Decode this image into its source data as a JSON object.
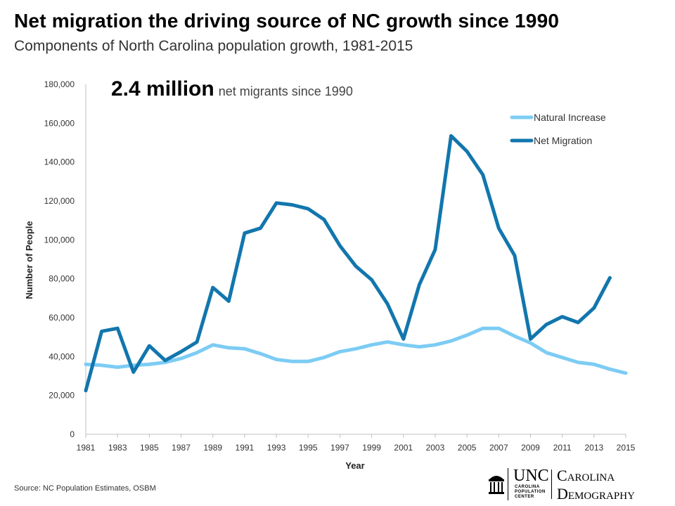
{
  "header": {
    "title": "Net migration the driving source of NC growth since 1990",
    "subtitle": "Components of North Carolina population growth, 1981-2015"
  },
  "callout": {
    "value": "2.4 million",
    "text": "net migrants since 1990"
  },
  "source": "Source: NC Population Estimates, OSBM",
  "logo": {
    "unc": "UNC",
    "center_lines": [
      "CAROLINA",
      "POPULATION",
      "CENTER"
    ],
    "name_line1": "Carolina",
    "name_line2": "Demography"
  },
  "colors": {
    "natural_increase": "#7cccf4",
    "net_migration": "#1276ad",
    "axis": "#bfbfbf",
    "text": "#333333"
  },
  "chart_data": {
    "type": "line",
    "title": "Components of North Carolina population growth, 1981-2015",
    "xlabel": "Year",
    "ylabel": "Number of People",
    "xlim": [
      1981,
      2015
    ],
    "ylim": [
      0,
      180000
    ],
    "grid": false,
    "legend_position": "top-right",
    "x_ticks": [
      "1981",
      "1983",
      "1985",
      "1987",
      "1989",
      "1991",
      "1993",
      "1995",
      "1997",
      "1999",
      "2001",
      "2003",
      "2005",
      "2007",
      "2009",
      "2011",
      "2013",
      "2015"
    ],
    "y_ticks": [
      0,
      20000,
      40000,
      60000,
      80000,
      100000,
      120000,
      140000,
      160000,
      180000
    ],
    "y_tick_labels": [
      "0",
      "20,000",
      "40,000",
      "60,000",
      "80,000",
      "100,000",
      "120,000",
      "140,000",
      "160,000",
      "180,000"
    ],
    "series": [
      {
        "name": "Natural Increase",
        "x": [
          1981,
          1982,
          1983,
          1984,
          1985,
          1986,
          1987,
          1988,
          1989,
          1990,
          1991,
          1992,
          1993,
          1994,
          1995,
          1996,
          1997,
          1998,
          1999,
          2000,
          2001,
          2002,
          2003,
          2004,
          2005,
          2006,
          2007,
          2008,
          2009,
          2010,
          2011,
          2012,
          2013,
          2014,
          2015
        ],
        "values": [
          36000,
          35500,
          34500,
          35500,
          36000,
          37000,
          39000,
          42000,
          46000,
          44500,
          44000,
          41500,
          38500,
          37500,
          37500,
          39500,
          42500,
          44000,
          46000,
          47500,
          46000,
          45000,
          46000,
          48000,
          51000,
          54500,
          54500,
          50500,
          47000,
          42000,
          39500,
          37000,
          36000,
          33500,
          31500
        ]
      },
      {
        "name": "Net Migration",
        "x": [
          1981,
          1982,
          1983,
          1984,
          1985,
          1986,
          1987,
          1988,
          1989,
          1990,
          1991,
          1992,
          1993,
          1994,
          1995,
          1996,
          1997,
          1998,
          1999,
          2000,
          2001,
          2002,
          2003,
          2004,
          2005,
          2006,
          2007,
          2008,
          2009,
          2010,
          2011,
          2012,
          2013,
          2014
        ],
        "values": [
          22500,
          53000,
          54500,
          32000,
          45500,
          38000,
          42500,
          47500,
          75500,
          68500,
          103500,
          106000,
          119000,
          118000,
          116000,
          110500,
          97000,
          86500,
          79500,
          67000,
          49000,
          77000,
          95000,
          153500,
          145500,
          133500,
          106000,
          92000,
          49000,
          56500,
          60500,
          57500,
          65000,
          80500
        ]
      }
    ]
  }
}
